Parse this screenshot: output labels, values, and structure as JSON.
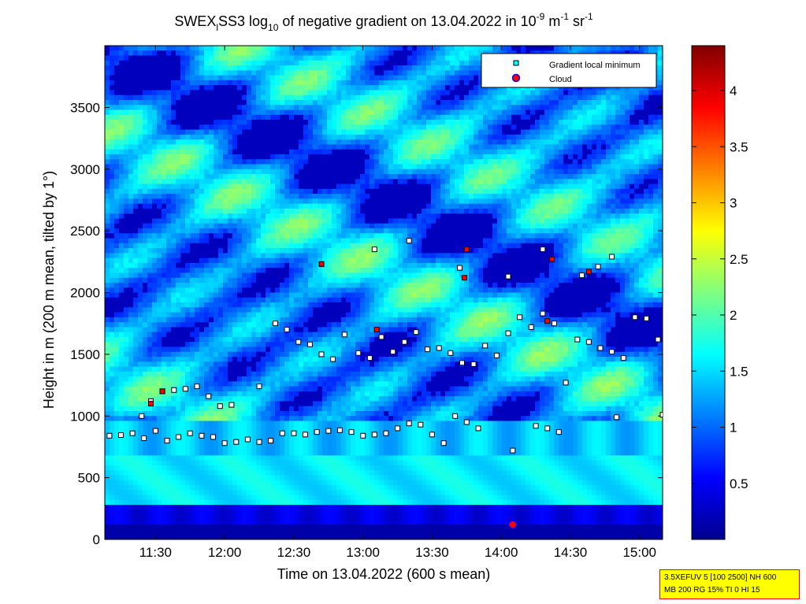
{
  "title": {
    "prefix": "SWEX",
    "prefix_sub": "l",
    "main": "SS3 log",
    "log_base": "10",
    "mid": " of negative gradient on 13.04.2022 in 10",
    "exp1": "-9",
    "mid2": " m",
    "exp2": "-1",
    "mid3": " sr",
    "exp3": "-1"
  },
  "xlabel": "Time on 13.04.2022 (600 s mean)",
  "ylabel": "Height in m (200 m mean, tilted by 1°)",
  "legend": {
    "placement": "top-right",
    "items": [
      {
        "label": "Gradient local minimum",
        "marker": "square",
        "color": "#00ffff"
      },
      {
        "label": "Cloud",
        "marker": "circle",
        "color": "#ff0000"
      }
    ]
  },
  "info_box": {
    "line1": "3.5XEFUV 5 [100 2500] NH 600",
    "line2": "MB 200 RG 15% TI 0 HI 15"
  },
  "colors": {
    "low": "#00008f",
    "mid": "#00ffff",
    "high": "#800000",
    "minimum_marker": "#00ffff",
    "cloud_marker": "#ff0000"
  },
  "chart_data": {
    "type": "heatmap",
    "colormap": "jet",
    "x_unit": "time (HH:MM)",
    "y_unit": "m",
    "xlim": [
      "11:08",
      "15:10"
    ],
    "ylim": [
      0,
      4000
    ],
    "x_ticks": [
      "11:30",
      "12:00",
      "12:30",
      "13:00",
      "13:30",
      "14:00",
      "14:30",
      "15:00"
    ],
    "y_ticks": [
      0,
      500,
      1000,
      1500,
      2000,
      2500,
      3000,
      3500
    ],
    "colorbar": {
      "range": [
        0,
        4.4
      ],
      "ticks": [
        "0.5",
        "1",
        "1.5",
        "2",
        "2.5",
        "3",
        "3.5",
        "4"
      ]
    },
    "gradient_minima": [
      {
        "time": "11:10",
        "height": 840
      },
      {
        "time": "11:15",
        "height": 845
      },
      {
        "time": "11:20",
        "height": 860
      },
      {
        "time": "11:25",
        "height": 820
      },
      {
        "time": "11:30",
        "height": 880
      },
      {
        "time": "11:35",
        "height": 800
      },
      {
        "time": "11:40",
        "height": 830
      },
      {
        "time": "11:45",
        "height": 860
      },
      {
        "time": "11:50",
        "height": 840
      },
      {
        "time": "11:55",
        "height": 830
      },
      {
        "time": "12:00",
        "height": 780
      },
      {
        "time": "12:05",
        "height": 790
      },
      {
        "time": "12:10",
        "height": 810
      },
      {
        "time": "12:15",
        "height": 790
      },
      {
        "time": "12:20",
        "height": 800
      },
      {
        "time": "12:25",
        "height": 860
      },
      {
        "time": "12:30",
        "height": 860
      },
      {
        "time": "12:35",
        "height": 850
      },
      {
        "time": "12:40",
        "height": 870
      },
      {
        "time": "12:45",
        "height": 880
      },
      {
        "time": "12:50",
        "height": 885
      },
      {
        "time": "12:55",
        "height": 870
      },
      {
        "time": "13:00",
        "height": 840
      },
      {
        "time": "13:05",
        "height": 850
      },
      {
        "time": "13:10",
        "height": 860
      },
      {
        "time": "13:15",
        "height": 900
      },
      {
        "time": "13:20",
        "height": 940
      },
      {
        "time": "13:25",
        "height": 930
      },
      {
        "time": "13:30",
        "height": 850
      },
      {
        "time": "13:35",
        "height": 780
      },
      {
        "time": "13:40",
        "height": 1000
      },
      {
        "time": "13:45",
        "height": 950
      },
      {
        "time": "13:50",
        "height": 900
      },
      {
        "time": "14:05",
        "height": 720
      },
      {
        "time": "14:15",
        "height": 920
      },
      {
        "time": "14:20",
        "height": 900
      },
      {
        "time": "14:25",
        "height": 870
      },
      {
        "time": "14:50",
        "height": 990
      },
      {
        "time": "15:10",
        "height": 1010
      },
      {
        "time": "11:24",
        "height": 1000
      },
      {
        "time": "11:28",
        "height": 1120
      },
      {
        "time": "11:33",
        "height": 1200
      },
      {
        "time": "11:38",
        "height": 1210
      },
      {
        "time": "11:43",
        "height": 1220
      },
      {
        "time": "11:48",
        "height": 1240
      },
      {
        "time": "11:53",
        "height": 1160
      },
      {
        "time": "11:58",
        "height": 1080
      },
      {
        "time": "12:03",
        "height": 1090
      },
      {
        "time": "12:15",
        "height": 1240
      },
      {
        "time": "12:22",
        "height": 1750
      },
      {
        "time": "12:27",
        "height": 1700
      },
      {
        "time": "12:32",
        "height": 1600
      },
      {
        "time": "12:37",
        "height": 1580
      },
      {
        "time": "12:42",
        "height": 1500
      },
      {
        "time": "12:47",
        "height": 1460
      },
      {
        "time": "12:52",
        "height": 1660
      },
      {
        "time": "12:58",
        "height": 1510
      },
      {
        "time": "13:03",
        "height": 1470
      },
      {
        "time": "13:08",
        "height": 1640
      },
      {
        "time": "13:13",
        "height": 1520
      },
      {
        "time": "13:18",
        "height": 1600
      },
      {
        "time": "13:23",
        "height": 1680
      },
      {
        "time": "13:28",
        "height": 1540
      },
      {
        "time": "13:33",
        "height": 1550
      },
      {
        "time": "13:38",
        "height": 1510
      },
      {
        "time": "13:43",
        "height": 1430
      },
      {
        "time": "13:48",
        "height": 1420
      },
      {
        "time": "13:53",
        "height": 1570
      },
      {
        "time": "13:58",
        "height": 1490
      },
      {
        "time": "14:03",
        "height": 1670
      },
      {
        "time": "14:08",
        "height": 1800
      },
      {
        "time": "14:13",
        "height": 1720
      },
      {
        "time": "14:18",
        "height": 1830
      },
      {
        "time": "14:23",
        "height": 1750
      },
      {
        "time": "14:28",
        "height": 1270
      },
      {
        "time": "14:33",
        "height": 1620
      },
      {
        "time": "14:38",
        "height": 1600
      },
      {
        "time": "14:43",
        "height": 1550
      },
      {
        "time": "14:48",
        "height": 1520
      },
      {
        "time": "14:53",
        "height": 1470
      },
      {
        "time": "14:58",
        "height": 1800
      },
      {
        "time": "15:03",
        "height": 1790
      },
      {
        "time": "15:08",
        "height": 1620
      },
      {
        "time": "12:42",
        "height": 2230
      },
      {
        "time": "13:05",
        "height": 2350
      },
      {
        "time": "13:20",
        "height": 2420
      },
      {
        "time": "13:42",
        "height": 2200
      },
      {
        "time": "14:03",
        "height": 2130
      },
      {
        "time": "14:18",
        "height": 2350
      },
      {
        "time": "14:35",
        "height": 2140
      },
      {
        "time": "14:42",
        "height": 2210
      },
      {
        "time": "14:48",
        "height": 2290
      }
    ],
    "clouds": [
      {
        "time": "11:28",
        "height": 1100
      },
      {
        "time": "11:33",
        "height": 1200
      },
      {
        "time": "12:42",
        "height": 2230
      },
      {
        "time": "13:06",
        "height": 1700
      },
      {
        "time": "13:44",
        "height": 2120
      },
      {
        "time": "13:45",
        "height": 2350
      },
      {
        "time": "14:05",
        "height": 120
      },
      {
        "time": "14:20",
        "height": 1770
      },
      {
        "time": "14:22",
        "height": 2270
      },
      {
        "time": "14:38",
        "height": 2170
      }
    ]
  }
}
